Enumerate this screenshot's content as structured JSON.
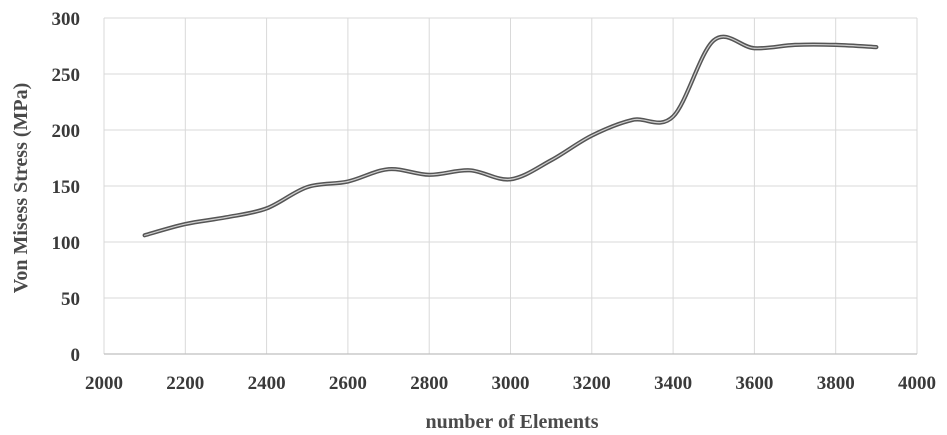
{
  "chart_data": {
    "type": "line",
    "title": "",
    "xlabel": "number of Elements",
    "ylabel": "Von Misess Stress (MPa)",
    "xlim": [
      2000,
      4000
    ],
    "ylim": [
      0,
      300
    ],
    "x_ticks": [
      2000,
      2200,
      2400,
      2600,
      2800,
      3000,
      3200,
      3400,
      3600,
      3800,
      4000
    ],
    "y_ticks": [
      0,
      50,
      100,
      150,
      200,
      250,
      300
    ],
    "grid": true,
    "legend": "none",
    "series": [
      {
        "x": [
          2100,
          2200,
          2300,
          2400,
          2500,
          2600,
          2700,
          2800,
          2900,
          3000,
          3100,
          3200,
          3300,
          3400,
          3500,
          3600,
          3700,
          3800,
          3900
        ],
        "y": [
          106,
          116,
          122,
          130,
          149,
          154,
          165,
          160,
          164,
          156,
          173,
          195,
          209,
          212,
          280,
          273,
          276,
          276,
          274
        ]
      }
    ],
    "line_color": "#555555",
    "grid_color": "#d9d9d9"
  }
}
